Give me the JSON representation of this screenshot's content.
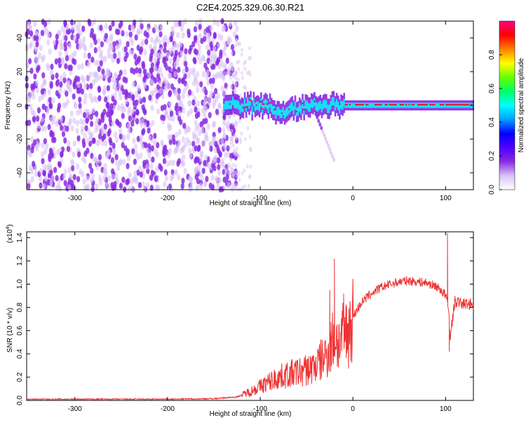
{
  "page_title": "C2E4.2025.329.06.30.R21",
  "chart_data": [
    {
      "type": "heatmap",
      "title": "C2E4.2025.329.06.30.R21",
      "xlabel": "Height of straight line (km)",
      "ylabel": "Frequency (Hz)",
      "xlim": [
        -352,
        130
      ],
      "ylim": [
        -50,
        50
      ],
      "x_ticks": [
        -300,
        -200,
        -100,
        0,
        100
      ],
      "x_tick_labels": [
        "-300",
        "-200",
        "-100",
        "0",
        "100"
      ],
      "y_ticks": [
        -40,
        -20,
        0,
        20,
        40
      ],
      "y_tick_labels": [
        "-40",
        "-20",
        "0",
        "20",
        "40"
      ],
      "colorbar": {
        "label": "Normalized spectral amplitude",
        "range": [
          0.0,
          1.0
        ],
        "ticks": [
          0.0,
          0.2,
          0.4,
          0.6,
          0.8
        ],
        "tick_labels": [
          "0.0",
          "0.2",
          "0.4",
          "0.6",
          "0.8"
        ],
        "colors": [
          "#ffffff",
          "#d9c2f5",
          "#8a2be2",
          "#5000ff",
          "#0000ff",
          "#00a0ff",
          "#00ffff",
          "#00ff66",
          "#66ff00",
          "#ffff00",
          "#ff8000",
          "#ff0000",
          "#ff0080"
        ]
      },
      "description_features": {
        "noise_region_x": [
          -352,
          -125
        ],
        "signal_band_x": [
          -140,
          130
        ],
        "signal_center_hz": 0
      },
      "colors": {
        "noise": "#8a2be2",
        "weak": "#d9c2f5",
        "band": "#00ffff",
        "peak": "#ff0000"
      }
    },
    {
      "type": "line",
      "xlabel": "Height of straight line (km)",
      "ylabel": "SNR (10 * v/v)",
      "y_multiplier_label": "(x10",
      "y_multiplier_exp": "4",
      "y_multiplier_close": ")",
      "xlim": [
        -352,
        130
      ],
      "ylim": [
        0.0,
        1.45
      ],
      "x_ticks": [
        -300,
        -200,
        -100,
        0,
        100
      ],
      "x_tick_labels": [
        "-300",
        "-200",
        "-100",
        "0",
        "100"
      ],
      "y_ticks": [
        0.0,
        0.2,
        0.4,
        0.6,
        0.8,
        1.0,
        1.2,
        1.4
      ],
      "y_tick_labels": [
        "0.0",
        "0.2",
        "0.4",
        "0.6",
        "0.8",
        "1.0",
        "1.2",
        "1.4"
      ],
      "series": [
        {
          "name": "SNR",
          "color": "#ee3333",
          "x": [
            -352,
            -300,
            -250,
            -200,
            -150,
            -125,
            -110,
            -100,
            -90,
            -80,
            -70,
            -60,
            -50,
            -40,
            -30,
            -25,
            -20,
            -15,
            -10,
            -5,
            0,
            10,
            20,
            30,
            40,
            50,
            60,
            70,
            80,
            90,
            95,
            100,
            103,
            105,
            110,
            115,
            120,
            130
          ],
          "values": [
            0.01,
            0.01,
            0.01,
            0.01,
            0.015,
            0.03,
            0.08,
            0.12,
            0.16,
            0.2,
            0.22,
            0.24,
            0.26,
            0.3,
            0.38,
            0.45,
            0.55,
            0.5,
            0.55,
            0.6,
            0.72,
            0.85,
            0.92,
            0.97,
            1.0,
            1.02,
            1.03,
            1.02,
            1.01,
            0.98,
            0.95,
            0.9,
            0.8,
            0.55,
            0.85,
            0.84,
            0.83,
            0.83
          ],
          "spikes": [
            {
              "x": -25,
              "value": 0.95
            },
            {
              "x": -20,
              "value": 1.22
            },
            {
              "x": -10,
              "value": 0.92
            },
            {
              "x": 102,
              "value": 1.44
            },
            {
              "x": 104,
              "value": 0.42
            }
          ]
        }
      ]
    }
  ]
}
